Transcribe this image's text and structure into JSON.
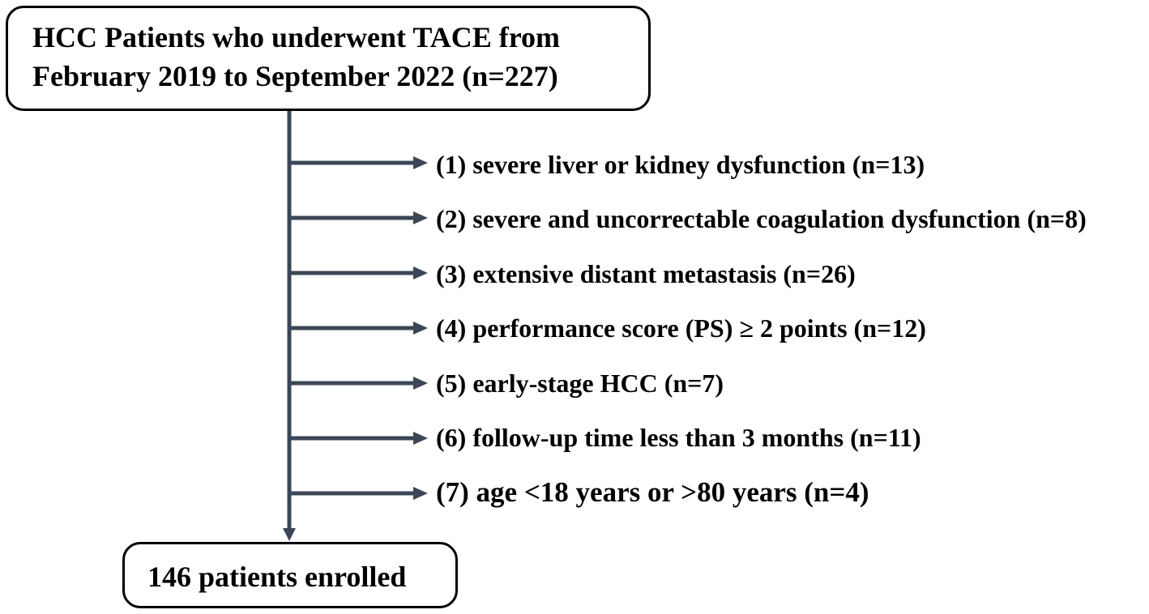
{
  "flowchart": {
    "start_box": {
      "line1": "HCC Patients who underwent TACE from",
      "line2": "February 2019 to September 2022 (n=227)"
    },
    "exclusions": [
      "(1) severe liver or kidney dysfunction (n=13)",
      "(2) severe and uncorrectable coagulation dysfunction (n=8)",
      "(3) extensive distant metastasis (n=26)",
      "(4) performance score (PS) ≥ 2 points (n=12)",
      "(5) early-stage HCC (n=7)",
      "(6) follow-up time less than 3 months (n=11)",
      "(7) age <18 years or >80 years (n=4)"
    ],
    "end_box": {
      "label": "146 patients enrolled"
    },
    "connector_color": "#3b4656"
  }
}
